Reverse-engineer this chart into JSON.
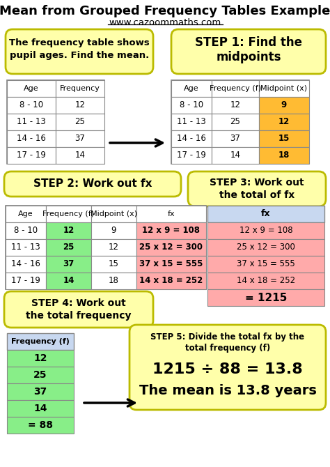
{
  "title": "Mean from Grouped Frequency Tables Example",
  "subtitle": "www.cazoommaths.com",
  "bg_color": "#ffffff",
  "yellow_box_color": "#ffffaa",
  "yellow_box_border": "#bbbb00",
  "orange_cell_color": "#ffbb33",
  "green_cell_color": "#88ee88",
  "red_cell_color": "#ffaaaa",
  "blue_header_color": "#c8d8f0",
  "table_border": "#888888",
  "ages": [
    "8 - 10",
    "11 - 13",
    "14 - 16",
    "17 - 19"
  ],
  "frequencies": [
    12,
    25,
    37,
    14
  ],
  "midpoints": [
    9,
    12,
    15,
    18
  ],
  "fx_values": [
    "12 x 9 = 108",
    "25 x 12 = 300",
    "37 x 15 = 555",
    "14 x 18 = 252"
  ],
  "total_fx": "= 1215",
  "total_freq": "= 88",
  "step5_line1": "1215 ÷ 88 = 13.8",
  "step5_line2": "The mean is 13.8 years"
}
